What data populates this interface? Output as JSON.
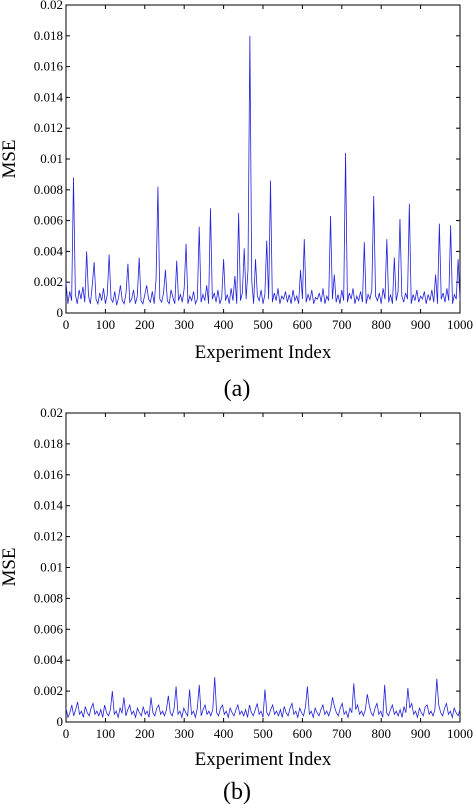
{
  "chart_data": [
    {
      "type": "line",
      "caption": "(a)",
      "xlabel": "Experiment Index",
      "ylabel": "MSE",
      "xlim": [
        0,
        1000
      ],
      "ylim": [
        0,
        0.02
      ],
      "xticks": [
        0,
        100,
        200,
        300,
        400,
        500,
        600,
        700,
        800,
        900,
        1000
      ],
      "xtick_labels": [
        "0",
        "100",
        "200",
        "300",
        "400",
        "500",
        "600",
        "700",
        "800",
        "900",
        "1000"
      ],
      "yticks": [
        0,
        0.002,
        0.004,
        0.006,
        0.008,
        0.01,
        0.012,
        0.014,
        0.016,
        0.018,
        0.02
      ],
      "ytick_labels": [
        "0",
        "0.002",
        "0.004",
        "0.006",
        "0.008",
        "0.01",
        "0.012",
        "0.014",
        "0.016",
        "0.018",
        "0.02"
      ],
      "grid": false,
      "color": "#2222dd",
      "series": [
        {
          "values": [
            0.002,
            0.0006,
            0.0014,
            0.0008,
            0.0088,
            0.0012,
            0.0006,
            0.0015,
            0.0009,
            0.0017,
            0.0007,
            0.004,
            0.0011,
            0.0006,
            0.0018,
            0.0033,
            0.0009,
            0.0006,
            0.0013,
            0.0008,
            0.0016,
            0.0006,
            0.0012,
            0.0038,
            0.0009,
            0.0007,
            0.0014,
            0.0005,
            0.001,
            0.0018,
            0.0008,
            0.0006,
            0.0013,
            0.0032,
            0.0007,
            0.0009,
            0.0015,
            0.0006,
            0.0011,
            0.0036,
            0.0008,
            0.0006,
            0.0012,
            0.0018,
            0.0009,
            0.0007,
            0.0014,
            0.0006,
            0.0022,
            0.0082,
            0.0009,
            0.0007,
            0.0013,
            0.0028,
            0.0008,
            0.0006,
            0.0015,
            0.001,
            0.0006,
            0.0034,
            0.0008,
            0.0012,
            0.0007,
            0.0016,
            0.0045,
            0.0006,
            0.0011,
            0.0008,
            0.0014,
            0.0006,
            0.0009,
            0.0056,
            0.0007,
            0.0012,
            0.0008,
            0.0018,
            0.0006,
            0.0068,
            0.0009,
            0.0013,
            0.0007,
            0.0015,
            0.0006,
            0.001,
            0.0035,
            0.0008,
            0.0012,
            0.0006,
            0.0016,
            0.0008,
            0.0024,
            0.0006,
            0.0065,
            0.0008,
            0.0013,
            0.0042,
            0.0009,
            0.0028,
            0.018,
            0.0021,
            0.0006,
            0.0035,
            0.0011,
            0.0008,
            0.0015,
            0.0006,
            0.0012,
            0.0047,
            0.0009,
            0.0086,
            0.0007,
            0.0013,
            0.0008,
            0.0016,
            0.0006,
            0.0011,
            0.0009,
            0.0014,
            0.0007,
            0.0012,
            0.0006,
            0.0015,
            0.0008,
            0.0011,
            0.0006,
            0.0028,
            0.0009,
            0.0048,
            0.0007,
            0.0012,
            0.0008,
            0.0015,
            0.0006,
            0.001,
            0.0009,
            0.0013,
            0.0007,
            0.0016,
            0.0006,
            0.0011,
            0.0008,
            0.0063,
            0.0009,
            0.0025,
            0.0007,
            0.0012,
            0.0006,
            0.0015,
            0.0008,
            0.0104,
            0.0007,
            0.0013,
            0.0009,
            0.0016,
            0.0006,
            0.0011,
            0.0008,
            0.0014,
            0.0007,
            0.0046,
            0.0006,
            0.0012,
            0.0009,
            0.0015,
            0.0076,
            0.0011,
            0.0008,
            0.0013,
            0.0006,
            0.0016,
            0.0009,
            0.0048,
            0.0007,
            0.0012,
            0.0006,
            0.0036,
            0.0008,
            0.0014,
            0.0061,
            0.0011,
            0.0007,
            0.0013,
            0.0009,
            0.0071,
            0.0006,
            0.0012,
            0.0008,
            0.0015,
            0.0007,
            0.0011,
            0.0009,
            0.0014,
            0.0006,
            0.0012,
            0.0008,
            0.0015,
            0.0007,
            0.0025,
            0.0006,
            0.0058,
            0.0009,
            0.0013,
            0.0007,
            0.0016,
            0.0008,
            0.0057,
            0.0006,
            0.0012,
            0.0009,
            0.0035,
            0.0008
          ]
        }
      ]
    },
    {
      "type": "line",
      "caption": "(b)",
      "xlabel": "Experiment Index",
      "ylabel": "MSE",
      "xlim": [
        0,
        1000
      ],
      "ylim": [
        0,
        0.02
      ],
      "xticks": [
        0,
        100,
        200,
        300,
        400,
        500,
        600,
        700,
        800,
        900,
        1000
      ],
      "xtick_labels": [
        "0",
        "100",
        "200",
        "300",
        "400",
        "500",
        "600",
        "700",
        "800",
        "900",
        "1000"
      ],
      "yticks": [
        0,
        0.002,
        0.004,
        0.006,
        0.008,
        0.01,
        0.012,
        0.014,
        0.016,
        0.018,
        0.02
      ],
      "ytick_labels": [
        "0",
        "0.002",
        "0.004",
        "0.006",
        "0.008",
        "0.01",
        "0.012",
        "0.014",
        "0.016",
        "0.018",
        "0.02"
      ],
      "grid": false,
      "color": "#2222dd",
      "series": [
        {
          "values": [
            0.0009,
            0.0003,
            0.0006,
            0.0011,
            0.0004,
            0.0008,
            0.0013,
            0.0005,
            0.0007,
            0.0003,
            0.001,
            0.0006,
            0.0004,
            0.0009,
            0.0012,
            0.0005,
            0.0007,
            0.0004,
            0.0008,
            0.0003,
            0.0011,
            0.0006,
            0.0004,
            0.0008,
            0.002,
            0.0005,
            0.0007,
            0.0003,
            0.0009,
            0.0006,
            0.0016,
            0.0004,
            0.0008,
            0.0011,
            0.0005,
            0.0007,
            0.0003,
            0.0009,
            0.0006,
            0.0004,
            0.001,
            0.0005,
            0.0007,
            0.0003,
            0.0016,
            0.0006,
            0.0004,
            0.0009,
            0.0011,
            0.0005,
            0.0007,
            0.0004,
            0.0008,
            0.0017,
            0.0006,
            0.0004,
            0.0009,
            0.0023,
            0.0005,
            0.0007,
            0.0003,
            0.0009,
            0.0006,
            0.0004,
            0.0021,
            0.0005,
            0.0007,
            0.0003,
            0.0009,
            0.0024,
            0.0004,
            0.0008,
            0.0011,
            0.0005,
            0.0007,
            0.0004,
            0.0008,
            0.0029,
            0.0006,
            0.0004,
            0.0009,
            0.0011,
            0.0005,
            0.0007,
            0.0003,
            0.0009,
            0.0006,
            0.0004,
            0.0008,
            0.0011,
            0.0005,
            0.0007,
            0.0004,
            0.0008,
            0.0003,
            0.0011,
            0.0006,
            0.0004,
            0.0008,
            0.0012,
            0.0005,
            0.0007,
            0.0003,
            0.0021,
            0.0006,
            0.0004,
            0.0008,
            0.0011,
            0.0005,
            0.0007,
            0.0004,
            0.0008,
            0.0003,
            0.001,
            0.0006,
            0.0004,
            0.0009,
            0.0012,
            0.0005,
            0.0007,
            0.0003,
            0.0009,
            0.0006,
            0.0004,
            0.001,
            0.0023,
            0.0005,
            0.0007,
            0.0003,
            0.0009,
            0.0006,
            0.0004,
            0.0008,
            0.0011,
            0.0005,
            0.0007,
            0.0004,
            0.0008,
            0.0016,
            0.001,
            0.0006,
            0.0004,
            0.0009,
            0.0012,
            0.0005,
            0.0007,
            0.0003,
            0.0009,
            0.0006,
            0.0025,
            0.0008,
            0.0011,
            0.0005,
            0.0007,
            0.0004,
            0.0008,
            0.0018,
            0.0011,
            0.0006,
            0.0004,
            0.0009,
            0.0012,
            0.0005,
            0.0007,
            0.0003,
            0.0024,
            0.0006,
            0.0004,
            0.0008,
            0.0011,
            0.0005,
            0.0007,
            0.0004,
            0.0008,
            0.0003,
            0.001,
            0.0006,
            0.0022,
            0.0009,
            0.0012,
            0.0005,
            0.0007,
            0.0003,
            0.0009,
            0.0006,
            0.0004,
            0.001,
            0.0011,
            0.0005,
            0.0007,
            0.0004,
            0.0008,
            0.0028,
            0.0011,
            0.0006,
            0.0004,
            0.0009,
            0.0012,
            0.0005,
            0.0007,
            0.0003,
            0.0009,
            0.0006,
            0.0004,
            0.0008
          ]
        }
      ]
    }
  ]
}
